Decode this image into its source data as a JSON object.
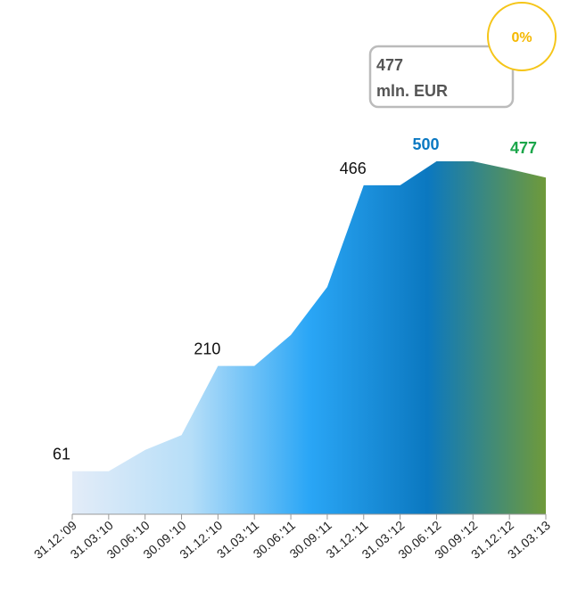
{
  "chart_data": {
    "type": "area",
    "categories": [
      "31.12.'09",
      "31.03.'10",
      "30.06.'10",
      "30.09.'10",
      "31.12.'10",
      "31.03.'11",
      "30.06.'11",
      "30.09.'11",
      "31.12.'11",
      "31.03.'12",
      "30.06.'12",
      "30.09.'12",
      "31.12.'12",
      "31.03.'13"
    ],
    "values": [
      61,
      61,
      91,
      112,
      210,
      210,
      254,
      322,
      466,
      466,
      500,
      500,
      489,
      477
    ],
    "value_labels": [
      "61",
      null,
      null,
      null,
      "210",
      null,
      null,
      null,
      "466",
      null,
      "500",
      null,
      null,
      "477"
    ],
    "value_label_colors": [
      "#111111",
      null,
      null,
      null,
      "#111111",
      null,
      null,
      null,
      "#111111",
      null,
      "#0a78c2",
      null,
      null,
      "#1aa64a"
    ],
    "ylim": [
      0,
      500
    ],
    "fill_gradient": [
      "#e3ecf8",
      "#b6def8",
      "#2aa6f6",
      "#0b78c0",
      "#6f9a3a"
    ],
    "callout": {
      "lines": [
        "477",
        "mln. EUR"
      ],
      "badge": "0%"
    }
  }
}
